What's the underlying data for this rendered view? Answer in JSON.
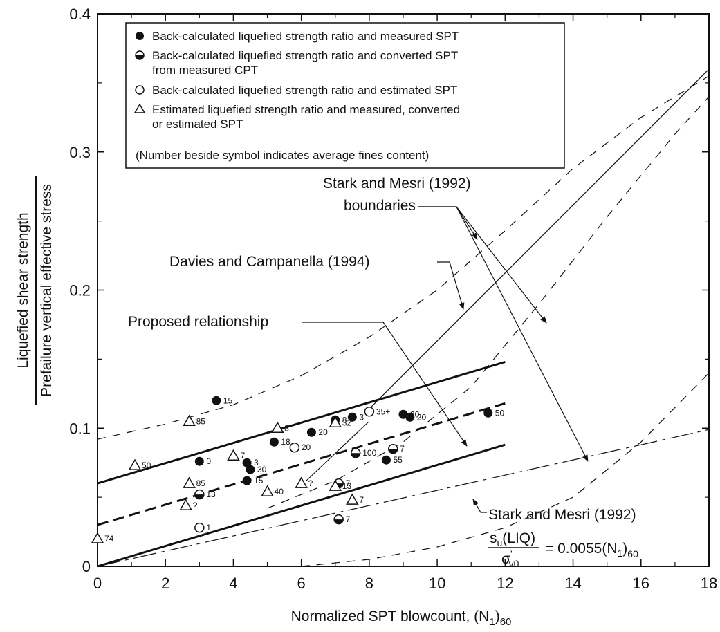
{
  "chart_data": {
    "type": "scatter",
    "xlabel": "Normalized SPT blowcount, (N",
    "xlabel_sub": "1",
    "xlabel_tail": ")",
    "xlabel_sub2": "60",
    "ylabel_top": "Liquefied shear strength",
    "ylabel_bottom": "Prefailure vertical effective stress",
    "xlim": [
      0,
      18
    ],
    "ylim": [
      0,
      0.4
    ],
    "xticks": [
      "0",
      "2",
      "4",
      "6",
      "8",
      "10",
      "12",
      "14",
      "16",
      "18"
    ],
    "yticks": [
      "0",
      "0.1",
      "0.2",
      "0.3",
      "0.4"
    ],
    "legend": {
      "placement": "top-left",
      "items": [
        {
          "marker": "filled-circle",
          "lines": [
            "Back-calculated liquefied strength ratio and measured SPT"
          ]
        },
        {
          "marker": "half-circle",
          "lines": [
            "Back-calculated liquefied strength ratio and converted SPT",
            "from measured CPT"
          ]
        },
        {
          "marker": "open-circle",
          "lines": [
            "Back-calculated liquefied strength ratio and estimated SPT"
          ]
        },
        {
          "marker": "triangle",
          "lines": [
            "Estimated liquefied strength ratio and measured, converted",
            "or estimated SPT"
          ]
        }
      ],
      "note": "(Number beside symbol indicates average fines content)"
    },
    "annotations": {
      "stark_boundaries": [
        "Stark and Mesri (1992)",
        "boundaries"
      ],
      "davies": "Davies and Campanella (1994)",
      "proposed": "Proposed relationship",
      "stark_line_title": "Stark and Mesri (1992)",
      "eq_num_base": "s",
      "eq_num_sub": "u",
      "eq_num_tail": "(LIQ)",
      "eq_den_base": "σ",
      "eq_den_sub": "v0",
      "eq_den_prime": "'",
      "eq_rhs": "= 0.0055(N",
      "eq_rhs_sub": "1",
      "eq_rhs_tail": ")",
      "eq_rhs_sub2": "60"
    },
    "series": [
      {
        "name": "Back-calculated liquefied strength ratio and measured SPT",
        "marker": "filled-circle",
        "points": [
          {
            "x": 3.0,
            "y": 0.076,
            "label": "0"
          },
          {
            "x": 3.5,
            "y": 0.12,
            "label": "15"
          },
          {
            "x": 4.4,
            "y": 0.075,
            "label": "3"
          },
          {
            "x": 4.5,
            "y": 0.07,
            "label": "30"
          },
          {
            "x": 4.4,
            "y": 0.062,
            "label": "15"
          },
          {
            "x": 5.2,
            "y": 0.09,
            "label": "18"
          },
          {
            "x": 6.3,
            "y": 0.097,
            "label": "20"
          },
          {
            "x": 7.0,
            "y": 0.106,
            "label": "8"
          },
          {
            "x": 7.5,
            "y": 0.108,
            "label": "3"
          },
          {
            "x": 8.5,
            "y": 0.077,
            "label": "55"
          },
          {
            "x": 9.0,
            "y": 0.11,
            "label": "20"
          },
          {
            "x": 9.2,
            "y": 0.108,
            "label": "20"
          },
          {
            "x": 11.5,
            "y": 0.111,
            "label": "50"
          }
        ]
      },
      {
        "name": "Back-calculated liquefied strength ratio and converted SPT from measured CPT",
        "marker": "half-circle",
        "points": [
          {
            "x": 3.0,
            "y": 0.052,
            "label": "13"
          },
          {
            "x": 7.1,
            "y": 0.06,
            "label": "7"
          },
          {
            "x": 7.1,
            "y": 0.034,
            "label": "7"
          },
          {
            "x": 7.6,
            "y": 0.082,
            "label": "100"
          },
          {
            "x": 8.7,
            "y": 0.085,
            "label": "7"
          }
        ]
      },
      {
        "name": "Back-calculated liquefied strength ratio and estimated SPT",
        "marker": "open-circle",
        "points": [
          {
            "x": 3.0,
            "y": 0.028,
            "label": "1"
          },
          {
            "x": 5.8,
            "y": 0.086,
            "label": "20"
          },
          {
            "x": 8.0,
            "y": 0.112,
            "label": "35+"
          }
        ]
      },
      {
        "name": "Estimated liquefied strength ratio and measured, converted or estimated SPT",
        "marker": "triangle",
        "points": [
          {
            "x": 0.0,
            "y": 0.02,
            "label": "74"
          },
          {
            "x": 1.1,
            "y": 0.073,
            "label": "50"
          },
          {
            "x": 2.7,
            "y": 0.105,
            "label": "85"
          },
          {
            "x": 2.7,
            "y": 0.06,
            "label": "85"
          },
          {
            "x": 2.6,
            "y": 0.044,
            "label": "?"
          },
          {
            "x": 4.0,
            "y": 0.08,
            "label": "7"
          },
          {
            "x": 5.3,
            "y": 0.1,
            "label": "3"
          },
          {
            "x": 5.0,
            "y": 0.054,
            "label": "40"
          },
          {
            "x": 6.0,
            "y": 0.06,
            "label": "?"
          },
          {
            "x": 7.0,
            "y": 0.058,
            "label": "13"
          },
          {
            "x": 7.0,
            "y": 0.104,
            "label": "32"
          },
          {
            "x": 7.5,
            "y": 0.048,
            "label": "7"
          }
        ]
      }
    ],
    "lines": [
      {
        "id": "proposed-upper",
        "style": "solid-thick",
        "points": [
          [
            0,
            0.06
          ],
          [
            12,
            0.148
          ]
        ]
      },
      {
        "id": "proposed-mean",
        "style": "dashed-thick",
        "points": [
          [
            0,
            0.03
          ],
          [
            12,
            0.118
          ]
        ]
      },
      {
        "id": "proposed-lower",
        "style": "solid-thick",
        "points": [
          [
            0,
            0.0
          ],
          [
            12,
            0.088
          ]
        ]
      },
      {
        "id": "davies-campanella",
        "style": "solid-thin",
        "points": [
          [
            8,
            0.114
          ],
          [
            18,
            0.36
          ]
        ]
      },
      {
        "id": "stark-mesri-line",
        "style": "long-dash",
        "points": [
          [
            0,
            0.0
          ],
          [
            18,
            0.099
          ]
        ]
      },
      {
        "id": "stark-upper-boundary",
        "style": "dashed-thin",
        "points": [
          [
            0,
            0.092
          ],
          [
            2,
            0.103
          ],
          [
            4,
            0.117
          ],
          [
            6,
            0.138
          ],
          [
            8,
            0.166
          ],
          [
            10,
            0.2
          ],
          [
            12,
            0.243
          ],
          [
            14,
            0.288
          ],
          [
            16,
            0.325
          ],
          [
            18,
            0.355
          ]
        ]
      },
      {
        "id": "stark-middle-boundary",
        "style": "dashed-thin",
        "points": [
          [
            5,
            0.042
          ],
          [
            7,
            0.062
          ],
          [
            9,
            0.09
          ],
          [
            11,
            0.13
          ],
          [
            13,
            0.19
          ],
          [
            15,
            0.253
          ],
          [
            17,
            0.313
          ],
          [
            18,
            0.34
          ]
        ]
      },
      {
        "id": "stark-lower-boundary",
        "style": "dashed-thin",
        "points": [
          [
            6,
            0.0
          ],
          [
            8,
            0.005
          ],
          [
            10,
            0.014
          ],
          [
            12,
            0.028
          ],
          [
            14,
            0.05
          ],
          [
            16,
            0.09
          ],
          [
            17,
            0.115
          ],
          [
            18,
            0.14
          ]
        ]
      }
    ]
  }
}
